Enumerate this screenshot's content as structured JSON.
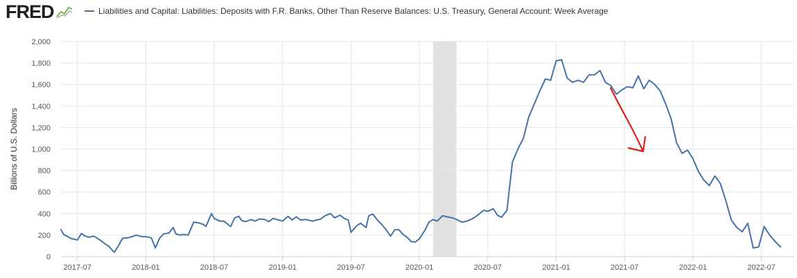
{
  "header": {
    "logo_text": "FRED",
    "logo_icon": "line-chart-icon"
  },
  "colors": {
    "series": "#4572a7",
    "recession": "#e1e1e1",
    "grid": "#e6e6e6",
    "annotation": "#e01b1b"
  },
  "chart_data": {
    "type": "line",
    "title": "Liabilities and Capital: Liabilities: Deposits with F.R. Banks, Other Than Reserve Balances: U.S. Treasury, General Account: Week Average",
    "xlabel": "",
    "ylabel": "Billions of U.S. Dollars",
    "ylim": [
      0,
      2000
    ],
    "xlim": [
      2017.38,
      2022.74
    ],
    "yticks": [
      0,
      200,
      400,
      600,
      800,
      1000,
      1200,
      1400,
      1600,
      1800,
      2000
    ],
    "ytick_labels": [
      "0",
      "200",
      "400",
      "600",
      "800",
      "1,000",
      "1,200",
      "1,400",
      "1,600",
      "1,800",
      "2,000"
    ],
    "xticks": [
      2017.5,
      2018.0,
      2018.5,
      2019.0,
      2019.5,
      2020.0,
      2020.5,
      2021.0,
      2021.5,
      2022.0,
      2022.5
    ],
    "xtick_labels": [
      "2017-07",
      "2018-01",
      "2018-07",
      "2019-01",
      "2019-07",
      "2020-01",
      "2020-07",
      "2021-01",
      "2021-07",
      "2022-01",
      "2022-07"
    ],
    "grid": true,
    "legend": "top-left",
    "recession_shading": [
      2020.1,
      2020.27
    ],
    "annotation": "red hand-drawn arrow pointing down",
    "series": [
      {
        "name": "Liabilities and Capital: Liabilities: Deposits with F.R. Banks, Other Than Reserve Balances: U.S. Treasury, General Account: Week Average",
        "points": [
          [
            2017.38,
            250
          ],
          [
            2017.4,
            205
          ],
          [
            2017.43,
            185
          ],
          [
            2017.45,
            170
          ],
          [
            2017.48,
            160
          ],
          [
            2017.5,
            155
          ],
          [
            2017.53,
            215
          ],
          [
            2017.55,
            195
          ],
          [
            2017.58,
            180
          ],
          [
            2017.62,
            190
          ],
          [
            2017.64,
            175
          ],
          [
            2017.67,
            150
          ],
          [
            2017.7,
            120
          ],
          [
            2017.73,
            95
          ],
          [
            2017.75,
            65
          ],
          [
            2017.77,
            40
          ],
          [
            2017.8,
            100
          ],
          [
            2017.83,
            170
          ],
          [
            2017.87,
            175
          ],
          [
            2017.9,
            185
          ],
          [
            2017.93,
            200
          ],
          [
            2017.97,
            185
          ],
          [
            2018.0,
            185
          ],
          [
            2018.04,
            175
          ],
          [
            2018.07,
            80
          ],
          [
            2018.1,
            170
          ],
          [
            2018.13,
            210
          ],
          [
            2018.17,
            220
          ],
          [
            2018.2,
            270
          ],
          [
            2018.22,
            210
          ],
          [
            2018.25,
            200
          ],
          [
            2018.28,
            205
          ],
          [
            2018.31,
            200
          ],
          [
            2018.35,
            320
          ],
          [
            2018.38,
            315
          ],
          [
            2018.42,
            300
          ],
          [
            2018.44,
            280
          ],
          [
            2018.48,
            400
          ],
          [
            2018.5,
            355
          ],
          [
            2018.54,
            330
          ],
          [
            2018.57,
            330
          ],
          [
            2018.6,
            300
          ],
          [
            2018.62,
            280
          ],
          [
            2018.65,
            360
          ],
          [
            2018.68,
            375
          ],
          [
            2018.7,
            335
          ],
          [
            2018.73,
            325
          ],
          [
            2018.77,
            345
          ],
          [
            2018.8,
            330
          ],
          [
            2018.83,
            350
          ],
          [
            2018.87,
            345
          ],
          [
            2018.9,
            325
          ],
          [
            2018.93,
            355
          ],
          [
            2018.97,
            340
          ],
          [
            2019.0,
            330
          ],
          [
            2019.04,
            375
          ],
          [
            2019.07,
            340
          ],
          [
            2019.1,
            370
          ],
          [
            2019.13,
            340
          ],
          [
            2019.17,
            345
          ],
          [
            2019.2,
            335
          ],
          [
            2019.22,
            330
          ],
          [
            2019.25,
            340
          ],
          [
            2019.28,
            350
          ],
          [
            2019.31,
            380
          ],
          [
            2019.35,
            400
          ],
          [
            2019.38,
            360
          ],
          [
            2019.42,
            385
          ],
          [
            2019.45,
            355
          ],
          [
            2019.48,
            340
          ],
          [
            2019.5,
            225
          ],
          [
            2019.54,
            285
          ],
          [
            2019.57,
            310
          ],
          [
            2019.61,
            270
          ],
          [
            2019.63,
            380
          ],
          [
            2019.66,
            395
          ],
          [
            2019.7,
            330
          ],
          [
            2019.72,
            305
          ],
          [
            2019.75,
            260
          ],
          [
            2019.79,
            190
          ],
          [
            2019.82,
            250
          ],
          [
            2019.85,
            250
          ],
          [
            2019.88,
            205
          ],
          [
            2019.91,
            180
          ],
          [
            2019.94,
            140
          ],
          [
            2019.97,
            135
          ],
          [
            2020.0,
            165
          ],
          [
            2020.04,
            245
          ],
          [
            2020.07,
            320
          ],
          [
            2020.1,
            345
          ],
          [
            2020.13,
            330
          ],
          [
            2020.17,
            380
          ],
          [
            2020.2,
            370
          ],
          [
            2020.24,
            360
          ],
          [
            2020.28,
            340
          ],
          [
            2020.31,
            320
          ],
          [
            2020.35,
            330
          ],
          [
            2020.4,
            360
          ],
          [
            2020.44,
            400
          ],
          [
            2020.47,
            430
          ],
          [
            2020.5,
            420
          ],
          [
            2020.54,
            445
          ],
          [
            2020.57,
            385
          ],
          [
            2020.6,
            365
          ],
          [
            2020.64,
            430
          ],
          [
            2020.68,
            880
          ],
          [
            2020.72,
            1000
          ],
          [
            2020.76,
            1100
          ],
          [
            2020.8,
            1300
          ],
          [
            2020.84,
            1420
          ],
          [
            2020.88,
            1540
          ],
          [
            2020.92,
            1650
          ],
          [
            2020.96,
            1640
          ],
          [
            2021.0,
            1820
          ],
          [
            2021.04,
            1830
          ],
          [
            2021.08,
            1660
          ],
          [
            2021.12,
            1620
          ],
          [
            2021.16,
            1640
          ],
          [
            2021.2,
            1620
          ],
          [
            2021.24,
            1690
          ],
          [
            2021.28,
            1690
          ],
          [
            2021.32,
            1730
          ],
          [
            2021.36,
            1620
          ],
          [
            2021.4,
            1590
          ],
          [
            2021.44,
            1510
          ],
          [
            2021.48,
            1550
          ],
          [
            2021.52,
            1580
          ],
          [
            2021.56,
            1570
          ],
          [
            2021.6,
            1680
          ],
          [
            2021.64,
            1560
          ],
          [
            2021.68,
            1640
          ],
          [
            2021.72,
            1600
          ],
          [
            2021.76,
            1540
          ],
          [
            2021.8,
            1420
          ],
          [
            2021.84,
            1280
          ],
          [
            2021.88,
            1060
          ],
          [
            2021.92,
            960
          ],
          [
            2021.96,
            990
          ],
          [
            2022.0,
            910
          ],
          [
            2022.04,
            790
          ],
          [
            2022.08,
            710
          ],
          [
            2022.12,
            660
          ],
          [
            2022.16,
            750
          ],
          [
            2022.2,
            680
          ],
          [
            2022.24,
            520
          ],
          [
            2022.28,
            340
          ],
          [
            2022.32,
            270
          ],
          [
            2022.36,
            230
          ],
          [
            2022.4,
            310
          ],
          [
            2022.44,
            80
          ],
          [
            2022.48,
            90
          ],
          [
            2022.52,
            280
          ],
          [
            2022.56,
            200
          ],
          [
            2022.6,
            140
          ],
          [
            2022.64,
            90
          ]
        ]
      }
    ]
  }
}
